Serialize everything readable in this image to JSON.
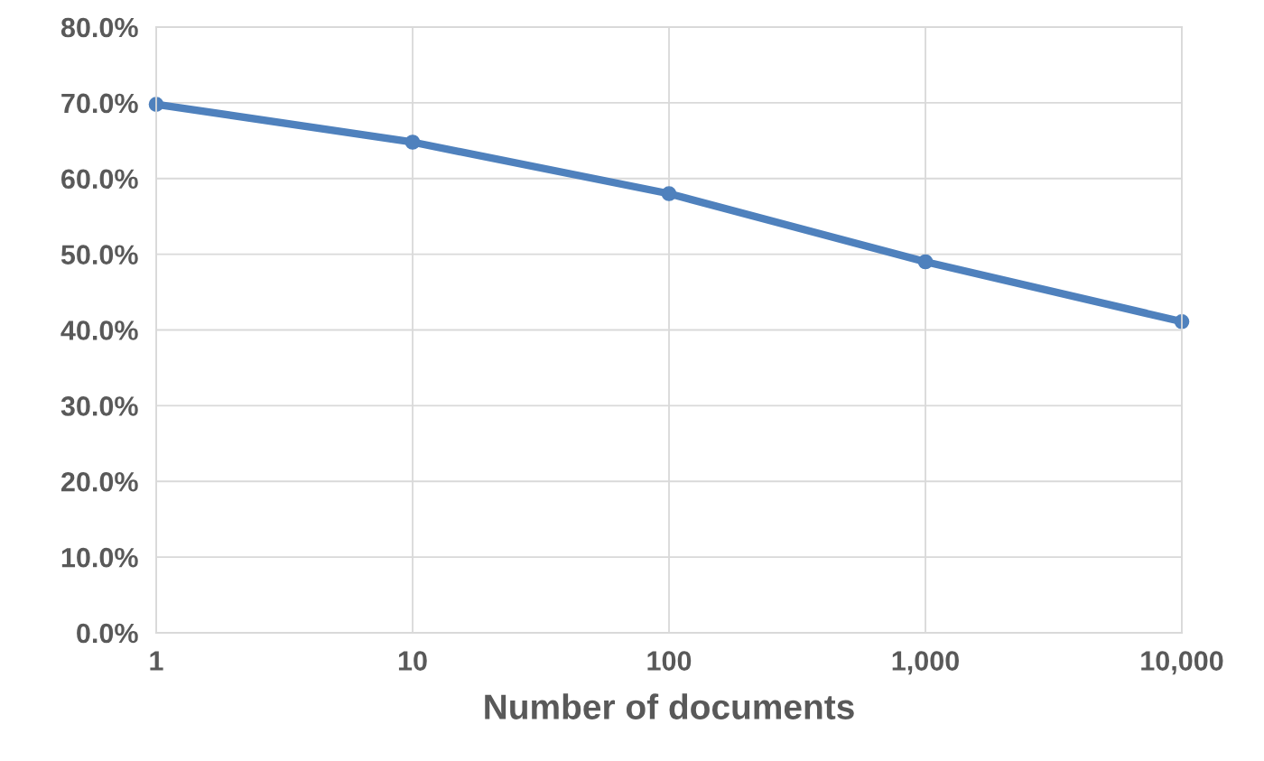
{
  "chart_data": {
    "type": "line",
    "xlabel": "Number of documents",
    "x": [
      1,
      10,
      100,
      1000,
      10000
    ],
    "series": [
      {
        "color": "#4f81bd",
        "values": [
          69.8,
          64.8,
          58.0,
          49.0,
          41.1
        ]
      }
    ],
    "log": "x",
    "xlim": [
      1,
      10000
    ],
    "xticks": [
      1,
      10,
      100,
      {
        "value": 1000,
        "label": "1,000"
      },
      {
        "value": 10000,
        "label": "10,000"
      }
    ],
    "ylim": [
      0,
      80
    ],
    "yticks": [
      {
        "value": 0,
        "label": "0.0%"
      },
      {
        "value": 10,
        "label": "10.0%"
      },
      {
        "value": 20,
        "label": "20.0%"
      },
      {
        "value": 30,
        "label": "30.0%"
      },
      {
        "value": 40,
        "label": "40.0%"
      },
      {
        "value": 50,
        "label": "50.0%"
      },
      {
        "value": 60,
        "label": "60.0%"
      },
      {
        "value": 70,
        "label": "70.0%"
      },
      {
        "value": 80,
        "label": "80.0%"
      }
    ],
    "grid": true,
    "marker": "circle",
    "line_style": "solid"
  }
}
